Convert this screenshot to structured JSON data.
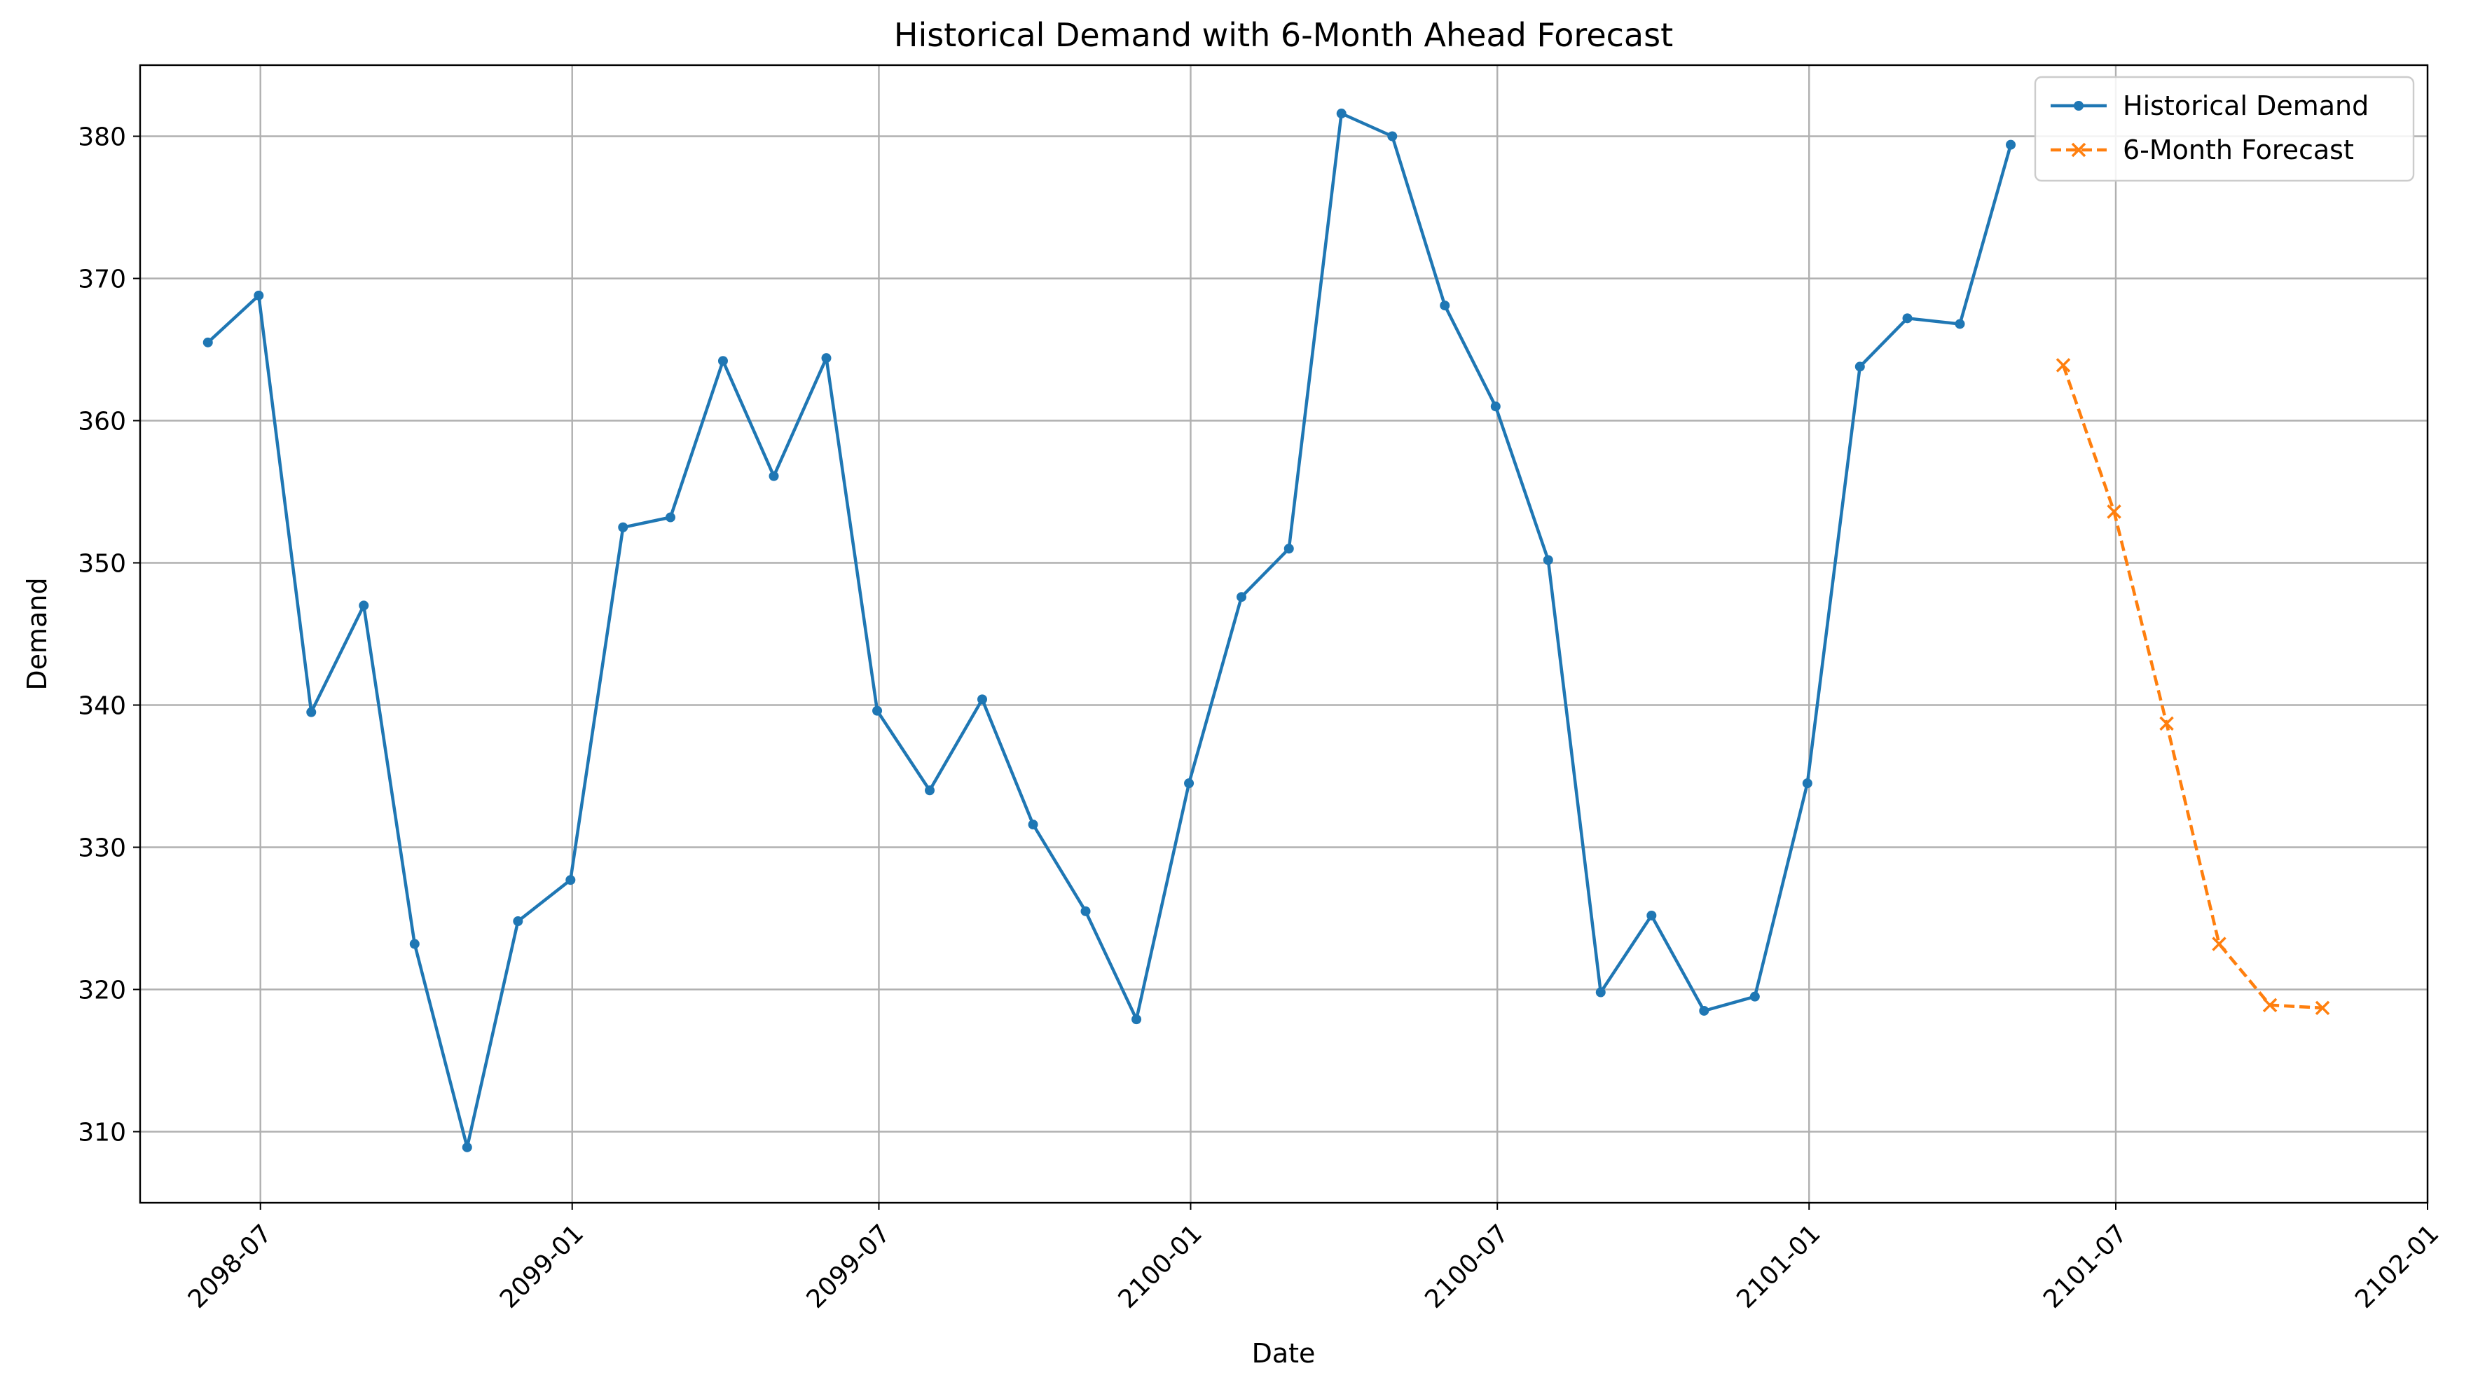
{
  "chart_data": {
    "type": "line",
    "title": "Historical Demand with 6-Month Ahead Forecast",
    "xlabel": "Date",
    "ylabel": "Demand",
    "xlim": [
      "2098-04-21",
      "2102-01-01"
    ],
    "ylim": [
      305,
      385
    ],
    "grid": true,
    "legend_position": "top-right",
    "x_ticks": [
      "2098-07",
      "2099-01",
      "2099-07",
      "2100-01",
      "2100-07",
      "2101-01",
      "2101-07",
      "2102-01"
    ],
    "y_ticks": [
      310,
      320,
      330,
      340,
      350,
      360,
      370,
      380
    ],
    "series": [
      {
        "name": "Historical Demand",
        "color": "#1f77b4",
        "style": "solid",
        "marker": "circle",
        "x": [
          "2098-05-31",
          "2098-06-30",
          "2098-07-31",
          "2098-08-31",
          "2098-09-30",
          "2098-10-31",
          "2098-11-30",
          "2098-12-31",
          "2099-01-31",
          "2099-02-28",
          "2099-03-31",
          "2099-04-30",
          "2099-05-31",
          "2099-06-30",
          "2099-07-31",
          "2099-08-31",
          "2099-09-30",
          "2099-10-31",
          "2099-11-30",
          "2099-12-31",
          "2100-01-31",
          "2100-02-28",
          "2100-03-31",
          "2100-04-30",
          "2100-05-31",
          "2100-06-30",
          "2100-07-31",
          "2100-08-31",
          "2100-09-30",
          "2100-10-31",
          "2100-11-30",
          "2100-12-31",
          "2101-01-31",
          "2101-02-28",
          "2101-03-31",
          "2101-04-30"
        ],
        "values": [
          365.5,
          368.8,
          339.5,
          347.0,
          323.2,
          308.9,
          324.8,
          327.7,
          352.5,
          353.2,
          364.2,
          356.1,
          364.4,
          339.6,
          334.0,
          340.4,
          331.6,
          325.5,
          317.9,
          334.5,
          347.6,
          351.0,
          381.6,
          380.0,
          368.1,
          361.0,
          350.2,
          319.8,
          325.2,
          318.5,
          319.5,
          334.5,
          363.8,
          367.2,
          366.8,
          379.4
        ]
      },
      {
        "name": "6-Month Forecast",
        "color": "#ff7f0e",
        "style": "dashed",
        "marker": "x",
        "x": [
          "2101-05-31",
          "2101-06-30",
          "2101-07-31",
          "2101-08-31",
          "2101-09-30",
          "2101-10-31"
        ],
        "values": [
          363.9,
          353.6,
          338.7,
          323.2,
          318.9,
          318.7
        ]
      }
    ]
  }
}
